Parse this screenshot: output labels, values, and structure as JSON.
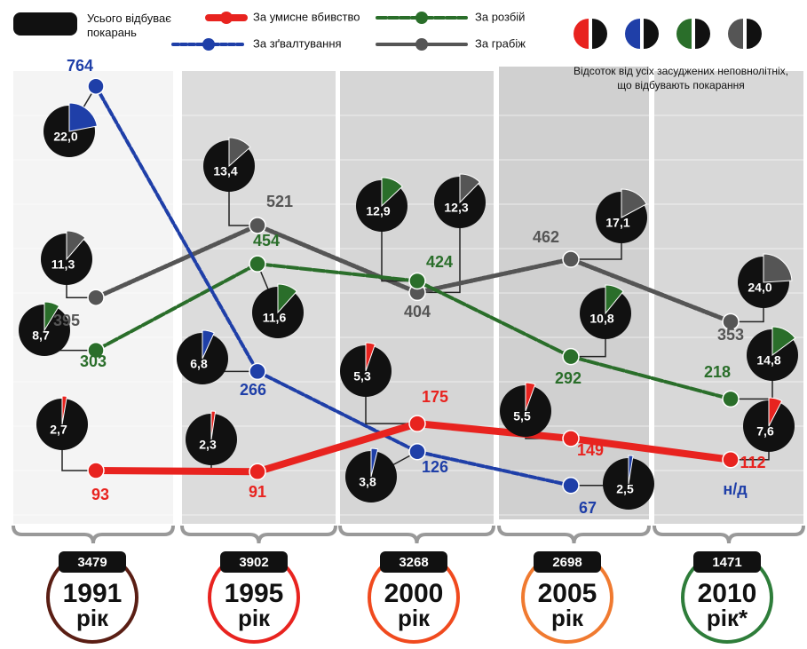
{
  "chart_data": {
    "type": "line",
    "legend_total": "Усього відбуває покарань",
    "pie_note": "Відсоток від усіх засуджених неповнолітніх, що відбувають покарання",
    "missing_label": "н/д",
    "categories": [
      "1991",
      "1995",
      "2000",
      "2005",
      "2010"
    ],
    "category_suffixes": [
      "рік",
      "рік",
      "рік",
      "рік",
      "рік*"
    ],
    "totals": [
      3479,
      3902,
      3268,
      2698,
      1471
    ],
    "total_color": "#111111",
    "year_ring_colors": [
      "#5a1e14",
      "#e8231f",
      "#f04a1e",
      "#f07a30",
      "#2e7d3a"
    ],
    "ylim": [
      0,
      800
    ],
    "series": [
      {
        "name": "За умисне вбивство",
        "color": "#e8231f",
        "values": [
          93,
          91,
          175,
          149,
          112
        ],
        "pie_values": [
          2.7,
          2.3,
          5.3,
          5.5,
          7.6
        ],
        "pie_labels": [
          "2,7",
          "2,3",
          "5,3",
          "5,5",
          "7,6"
        ]
      },
      {
        "name": "За зґвалтування",
        "color": "#1f3fa8",
        "values": [
          764,
          266,
          126,
          67,
          null
        ],
        "pie_values": [
          22.0,
          6.8,
          3.8,
          2.5,
          null
        ],
        "pie_labels": [
          "22,0",
          "6,8",
          "3,8",
          "2,5",
          null
        ]
      },
      {
        "name": "За розбій",
        "color": "#2a6e2a",
        "values": [
          303,
          454,
          424,
          292,
          218
        ],
        "pie_values": [
          8.7,
          11.6,
          12.9,
          10.8,
          14.8
        ],
        "pie_labels": [
          "8,7",
          "11,6",
          "12,9",
          "10,8",
          "14,8"
        ]
      },
      {
        "name": "За грабіж",
        "color": "#555555",
        "values": [
          395,
          521,
          404,
          462,
          353
        ],
        "pie_values": [
          11.3,
          13.4,
          12.3,
          17.1,
          24.0
        ],
        "pie_labels": [
          "11,3",
          "13,4",
          "12,3",
          "17,1",
          "24,0"
        ]
      }
    ]
  }
}
